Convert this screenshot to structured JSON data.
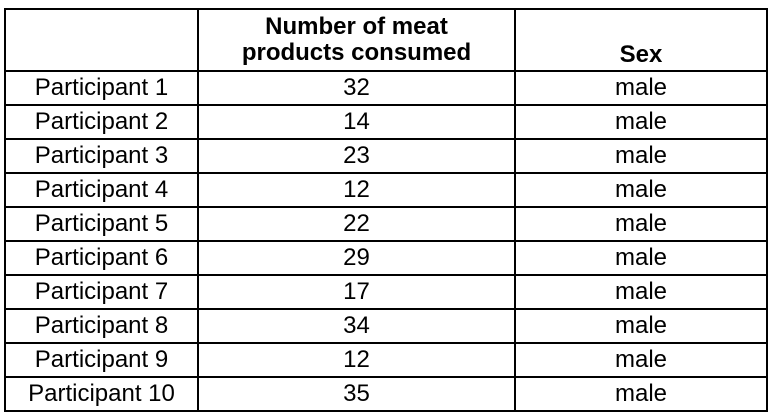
{
  "table": {
    "columns": [
      "",
      "Number of meat products consumed",
      "Sex"
    ],
    "header_lines": [
      "Number of meat",
      "products consumed"
    ],
    "rows": [
      {
        "participant": "Participant 1",
        "count": "32",
        "sex": "male"
      },
      {
        "participant": "Participant 2",
        "count": "14",
        "sex": "male"
      },
      {
        "participant": "Participant 3",
        "count": "23",
        "sex": "male"
      },
      {
        "participant": "Participant 4",
        "count": "12",
        "sex": "male"
      },
      {
        "participant": "Participant 5",
        "count": "22",
        "sex": "male"
      },
      {
        "participant": "Participant 6",
        "count": "29",
        "sex": "male"
      },
      {
        "participant": "Participant 7",
        "count": "17",
        "sex": "male"
      },
      {
        "participant": "Participant 8",
        "count": "34",
        "sex": "male"
      },
      {
        "participant": "Participant 9",
        "count": "12",
        "sex": "male"
      },
      {
        "participant": "Participant 10",
        "count": "35",
        "sex": "male"
      }
    ]
  }
}
